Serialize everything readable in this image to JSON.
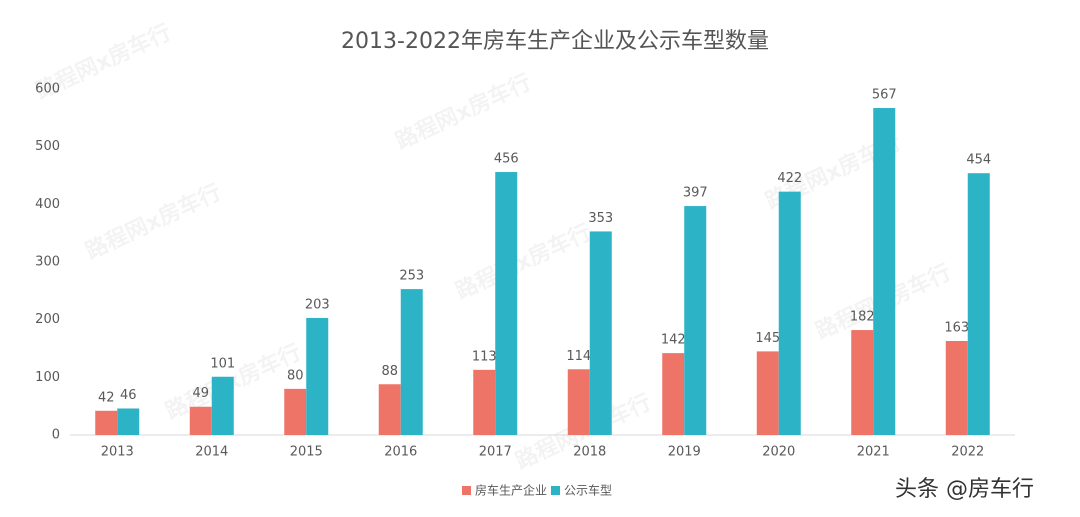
{
  "chart_data": {
    "type": "bar",
    "title": "2013-2022年房车生产企业及公示车型数量",
    "categories": [
      "2013",
      "2014",
      "2015",
      "2016",
      "2017",
      "2018",
      "2019",
      "2020",
      "2021",
      "2022"
    ],
    "series": [
      {
        "name": "房车生产企业",
        "color": "#ef7468",
        "values": [
          42,
          49,
          80,
          88,
          113,
          114,
          142,
          145,
          182,
          163
        ]
      },
      {
        "name": "公示车型",
        "color": "#2cb3c6",
        "values": [
          46,
          101,
          203,
          253,
          456,
          353,
          397,
          422,
          567,
          454
        ]
      }
    ],
    "ylim": [
      0,
      600
    ],
    "yticks": [
      0,
      100,
      200,
      300,
      400,
      500,
      600
    ],
    "grid": false,
    "legend": "bottom",
    "watermark": "路程网x房车行",
    "credit": "头条 @房车行"
  }
}
